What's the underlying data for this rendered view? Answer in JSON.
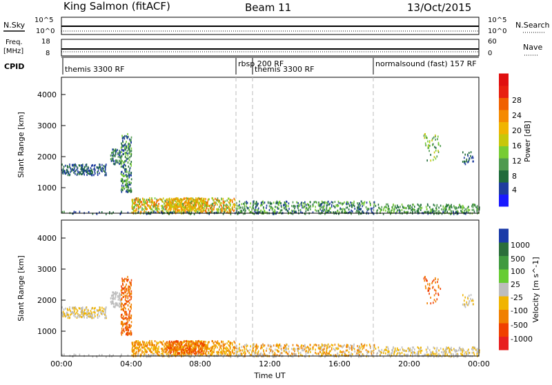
{
  "header": {
    "station": "King Salmon (fitACF)",
    "beam": "Beam 11",
    "date": "13/Oct/2015"
  },
  "nsky_panel": {
    "left_label": "N.Sky",
    "left_ticks": [
      "10^5",
      "10^0"
    ],
    "right_ticks": [
      "10^5",
      "10^0"
    ],
    "right_label": "N.Search"
  },
  "freq_panel": {
    "left_label_1": "Freq.",
    "left_label_2": "[MHz]",
    "left_ticks": [
      "18",
      "8"
    ],
    "right_ticks": [
      "60",
      "0"
    ],
    "right_label": "Nave"
  },
  "cpid_panel": {
    "label": "CPID",
    "segments": [
      {
        "label": "themis 3300 RF",
        "start_hour": 0
      },
      {
        "label": "rbsp 200 RF",
        "start_hour": 10
      },
      {
        "label": "themis 3300 RF",
        "start_hour": 10.8
      },
      {
        "label": "normalsound (fast) 157 RF",
        "start_hour": 18
      }
    ]
  },
  "chart_data": [
    {
      "type": "heatmap",
      "name": "power",
      "ylabel": "Slant Range [km]",
      "ylim": [
        180,
        4600
      ],
      "yticks": [
        "1000",
        "2000",
        "3000",
        "4000"
      ],
      "xlim": [
        0,
        24
      ],
      "colorbar": {
        "label": "Power [dB]",
        "ticks": [
          "4",
          "8",
          "12",
          "16",
          "20",
          "24",
          "28"
        ],
        "range": [
          0,
          32
        ]
      },
      "mode_change_hours": [
        10,
        10.8,
        18
      ]
    },
    {
      "type": "heatmap",
      "name": "velocity",
      "ylabel": "Slant Range [km]",
      "ylim": [
        180,
        4600
      ],
      "yticks": [
        "1000",
        "2000",
        "3000",
        "4000"
      ],
      "xlim": [
        0,
        24
      ],
      "xlabel": "Time UT",
      "xticks": [
        "00:00",
        "04:00",
        "08:00",
        "12:00",
        "16:00",
        "20:00",
        "00:00"
      ],
      "colorbar": {
        "label": "Velocity [m s^-1]",
        "ticks": [
          "1000",
          "500",
          "100",
          "25",
          "-25",
          "-100",
          "-500",
          "-1000"
        ]
      },
      "mode_change_hours": [
        10,
        10.8,
        18
      ]
    }
  ],
  "colors": {
    "power_scale": [
      "#1a1aff",
      "#2255aa",
      "#1f6b3a",
      "#4f9a4f",
      "#77cc33",
      "#c7c70a",
      "#f0b400",
      "#f58a00",
      "#f06000",
      "#e82010",
      "#e01010"
    ],
    "velocity_scale": [
      "#1a3aa8",
      "#2a6e3a",
      "#3f9a3f",
      "#66cc33",
      "#bdbdbd",
      "#f0b400",
      "#f08000",
      "#f05000",
      "#e82020"
    ]
  }
}
